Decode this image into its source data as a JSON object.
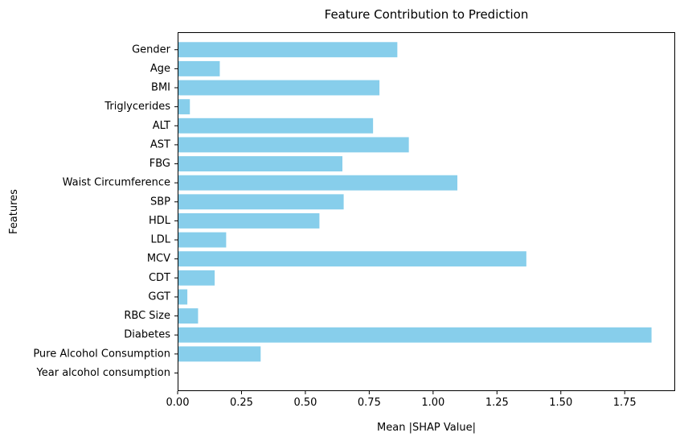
{
  "chart_data": {
    "type": "bar",
    "orientation": "horizontal",
    "title": "Feature Contribution to Prediction",
    "xlabel": "Mean |SHAP Value|",
    "ylabel": "Features",
    "categories": [
      "Gender",
      "Age",
      "BMI",
      "Triglycerides",
      "ALT",
      "AST",
      "FBG",
      "Waist Circumference",
      "SBP",
      "HDL",
      "LDL",
      "MCV",
      "CDT",
      "GGT",
      "RBC Size",
      "Diabetes",
      "Pure Alcohol Consumption",
      "Year alcohol consumption"
    ],
    "values": [
      0.86,
      0.165,
      0.79,
      0.048,
      0.765,
      0.905,
      0.645,
      1.095,
      0.65,
      0.555,
      0.19,
      1.365,
      0.145,
      0.038,
      0.08,
      1.855,
      0.325,
      0.0
    ],
    "xlim": [
      0,
      1.9475
    ],
    "xticks": [
      0.0,
      0.25,
      0.5,
      0.75,
      1.0,
      1.25,
      1.5,
      1.75
    ],
    "xtick_labels": [
      "0.00",
      "0.25",
      "0.50",
      "0.75",
      "1.00",
      "1.25",
      "1.50",
      "1.75"
    ],
    "bar_color": "#87ceeb",
    "grid": false,
    "legend": false
  }
}
